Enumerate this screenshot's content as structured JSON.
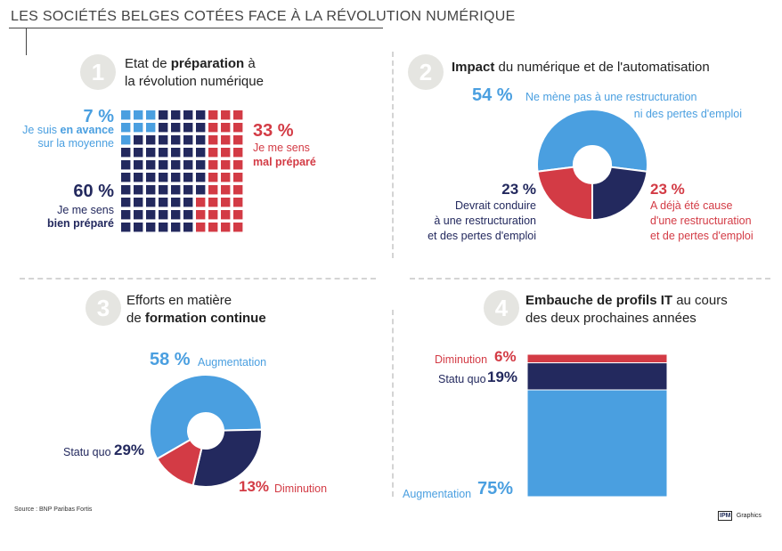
{
  "title": "LES SOCIÉTÉS BELGES COTÉES FACE À LA RÉVOLUTION NUMÉRIQUE",
  "source": "Source : BNP Paribas Fortis",
  "credit": {
    "logo": "IPM",
    "label": "Graphics"
  },
  "colors": {
    "light": "#4a9fe0",
    "dark": "#23295e",
    "red": "#d33b45",
    "circle": "#e5e5e1"
  },
  "sections": {
    "s1": {
      "num": "1",
      "title_a": "Etat de ",
      "title_b": "préparation",
      "title_c": " à",
      "title_d": "la révolution numérique",
      "items": {
        "advance": {
          "pct": "7 %",
          "l1a": "Je suis ",
          "l1b": "en avance",
          "l2": "sur la moyenne"
        },
        "bad": {
          "pct": "33 %",
          "l1": "Je me sens",
          "l2": "mal préparé"
        },
        "good": {
          "pct": "60 %",
          "l1": "Je me sens",
          "l2": "bien préparé"
        }
      }
    },
    "s2": {
      "num": "2",
      "title_a": "Impact",
      "title_b": " du numérique et de l'automatisation",
      "items": {
        "none": {
          "pct": "54 %",
          "l1": "Ne mène pas à une restructuration",
          "l2": "ni des pertes d'emploi"
        },
        "should": {
          "pct": "23 %",
          "l1": "Devrait conduire",
          "l2": "à une restructuration",
          "l3": "et des pertes d'emploi"
        },
        "already": {
          "pct": "23 %",
          "l1": "A déjà été cause",
          "l2": "d'une restructuration",
          "l3": "et de pertes d'emploi"
        }
      }
    },
    "s3": {
      "num": "3",
      "title_a": "Efforts en matière",
      "title_b": "de ",
      "title_c": "formation continue",
      "items": {
        "up": {
          "pct": "58 %",
          "label": "Augmentation"
        },
        "same": {
          "pct": "29%",
          "label": "Statu quo"
        },
        "down": {
          "pct": "13%",
          "label": "Diminution"
        }
      }
    },
    "s4": {
      "num": "4",
      "title_a": "Embauche de profils IT",
      "title_b": " au cours",
      "title_c": "des deux prochaines années",
      "items": {
        "down": {
          "pct": "6%",
          "label": "Diminution"
        },
        "same": {
          "pct": "19%",
          "label": "Statu quo"
        },
        "up": {
          "pct": "75%",
          "label": "Augmentation"
        }
      }
    }
  },
  "chart_data": [
    {
      "type": "waffle",
      "categories": [
        "en avance sur la moyenne",
        "bien préparé",
        "mal préparé"
      ],
      "values": [
        7,
        60,
        33
      ],
      "colors": [
        "#4a9fe0",
        "#23295e",
        "#d33b45"
      ]
    },
    {
      "type": "pie",
      "categories": [
        "Ne mène pas à une restructuration ni des pertes d'emploi",
        "Devrait conduire à une restructuration et des pertes d'emploi",
        "A déjà été cause d'une restructuration et de pertes d'emploi"
      ],
      "values": [
        54,
        23,
        23
      ],
      "colors": [
        "#4a9fe0",
        "#23295e",
        "#d33b45"
      ]
    },
    {
      "type": "pie",
      "categories": [
        "Augmentation",
        "Statu quo",
        "Diminution"
      ],
      "values": [
        58,
        29,
        13
      ],
      "colors": [
        "#4a9fe0",
        "#23295e",
        "#d33b45"
      ]
    },
    {
      "type": "bar",
      "stacked": true,
      "categories": [
        "Augmentation",
        "Statu quo",
        "Diminution"
      ],
      "values": [
        75,
        19,
        6
      ],
      "colors": [
        "#4a9fe0",
        "#23295e",
        "#d33b45"
      ]
    }
  ]
}
